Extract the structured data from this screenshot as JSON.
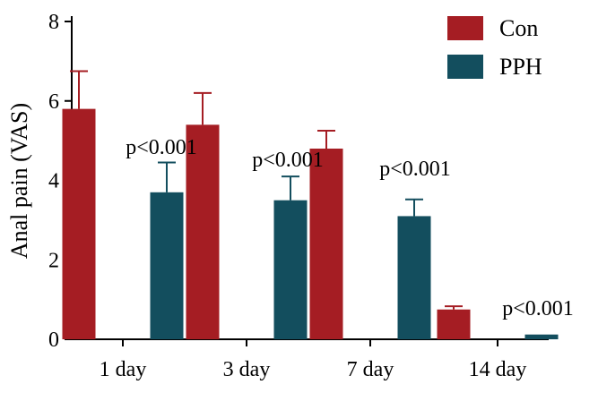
{
  "chart_data": {
    "type": "bar",
    "title": "",
    "xlabel": "",
    "ylabel": "Anal pain (VAS)",
    "ylim": [
      0,
      8
    ],
    "yticks": [
      0,
      2,
      4,
      6,
      8
    ],
    "categories": [
      "1 day",
      "3 day",
      "7 day",
      "14 day"
    ],
    "series": [
      {
        "name": "Con",
        "color": "#a51d23",
        "values": [
          5.8,
          5.4,
          4.8,
          0.75
        ],
        "errors": [
          0.95,
          0.8,
          0.45,
          0.08
        ]
      },
      {
        "name": "PPH",
        "color": "#134e5e",
        "values": [
          3.7,
          3.5,
          3.1,
          0.12
        ],
        "errors": [
          0.75,
          0.6,
          0.42,
          0.0
        ]
      }
    ],
    "annotations": [
      "p<0.001",
      "p<0.001",
      "p<0.001",
      "p<0.001"
    ],
    "legend": "top-right",
    "grid": false
  }
}
